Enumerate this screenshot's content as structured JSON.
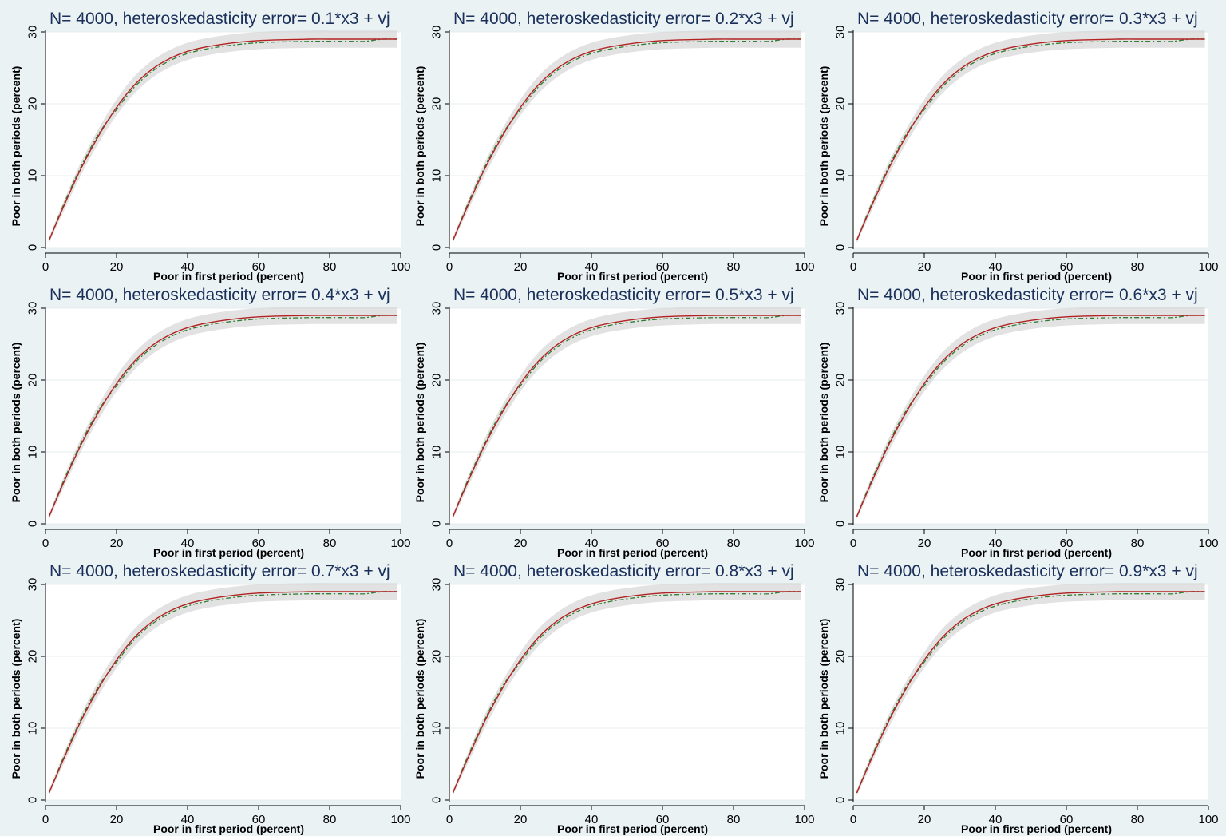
{
  "chart_data": {
    "type": "line",
    "xlabel": "Poor in first period (percent)",
    "ylabel": "Poor in both periods (percent)",
    "xlim": [
      0,
      100
    ],
    "ylim": [
      0,
      30
    ],
    "xticks": [
      0,
      20,
      40,
      60,
      80,
      100
    ],
    "yticks": [
      0,
      10,
      20,
      30
    ],
    "grid": true,
    "colors": {
      "background": "#eaf2f3",
      "plot_area": "#ffffff",
      "band": "#d3d3d3",
      "solid_line": "#b22222",
      "dashed_line": "#2e7d32",
      "title": "#1a2f5a"
    },
    "x": [
      1,
      5,
      10,
      15,
      20,
      25,
      30,
      35,
      40,
      45,
      50,
      55,
      60,
      65,
      70,
      75,
      80,
      85,
      90,
      95,
      99
    ],
    "series_y": [
      1,
      5.6,
      11,
      15.6,
      19.5,
      22.6,
      24.8,
      26.3,
      27.3,
      27.9,
      28.3,
      28.6,
      28.8,
      28.9,
      28.95,
      29,
      29,
      29,
      29,
      29,
      29
    ],
    "band_lower": [
      0.6,
      4.9,
      10.1,
      14.6,
      18.4,
      21.4,
      23.6,
      25.1,
      26.1,
      26.7,
      27.1,
      27.4,
      27.6,
      27.7,
      27.75,
      27.8,
      27.8,
      27.8,
      27.8,
      27.8,
      27.8
    ],
    "band_upper": [
      1.4,
      6.3,
      11.9,
      16.6,
      20.6,
      23.8,
      26,
      27.5,
      28.5,
      29.1,
      29.5,
      29.8,
      30,
      30.1,
      30.15,
      30.2,
      30.2,
      30.2,
      30.2,
      30.2,
      30.2
    ],
    "panels": [
      {
        "title": "N= 4000, heteroskedasticity error= 0.1*x3 + vj"
      },
      {
        "title": "N= 4000, heteroskedasticity error= 0.2*x3 + vj"
      },
      {
        "title": "N= 4000, heteroskedasticity error= 0.3*x3 + vj"
      },
      {
        "title": "N= 4000, heteroskedasticity error= 0.4*x3 + vj"
      },
      {
        "title": "N= 4000, heteroskedasticity error= 0.5*x3 + vj"
      },
      {
        "title": "N= 4000, heteroskedasticity error= 0.6*x3 + vj"
      },
      {
        "title": "N= 4000, heteroskedasticity error= 0.7*x3 + vj"
      },
      {
        "title": "N= 4000, heteroskedasticity error= 0.8*x3 + vj"
      },
      {
        "title": "N= 4000, heteroskedasticity error= 0.9*x3 + vj"
      }
    ]
  }
}
